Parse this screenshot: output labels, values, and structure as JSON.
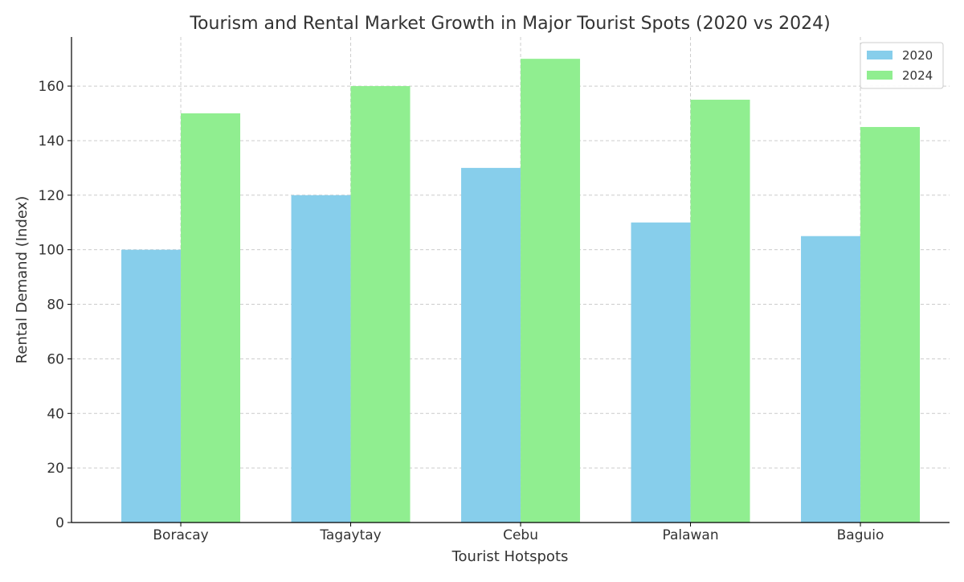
{
  "chart_data": {
    "type": "bar",
    "title": "Tourism and Rental Market Growth in Major Tourist Spots (2020 vs 2024)",
    "xlabel": "Tourist Hotspots",
    "ylabel": "Rental Demand (Index)",
    "categories": [
      "Boracay",
      "Tagaytay",
      "Cebu",
      "Palawan",
      "Baguio"
    ],
    "series": [
      {
        "name": "2020",
        "values": [
          100,
          120,
          130,
          110,
          105
        ],
        "color": "#87CEEB"
      },
      {
        "name": "2024",
        "values": [
          150,
          160,
          170,
          155,
          145
        ],
        "color": "#90EE90"
      }
    ],
    "ylim": [
      0,
      178
    ],
    "yticks": [
      0,
      20,
      40,
      60,
      80,
      100,
      120,
      140,
      160
    ],
    "grid": true,
    "legend_position": "top-right"
  }
}
